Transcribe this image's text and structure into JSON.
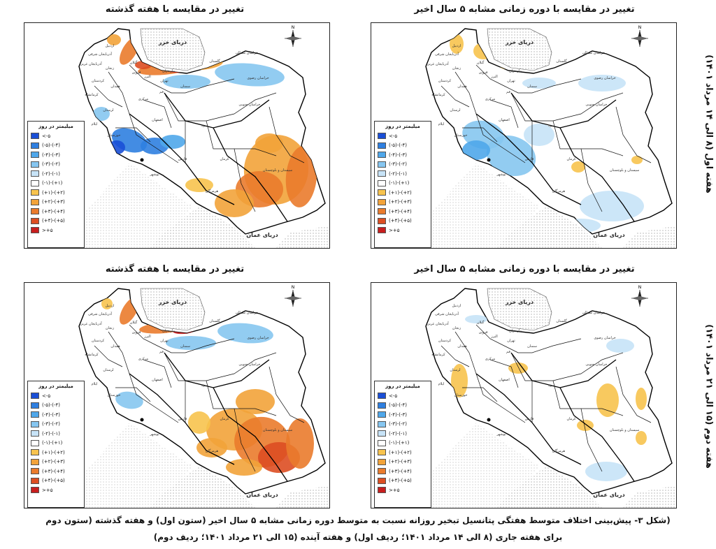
{
  "panels": [
    {
      "title": "تغییر در مقایسه با هفته گذشته",
      "variant": "tl"
    },
    {
      "title": "تغییر در مقایسه با دوره زمانی مشابه ۵ سال اخیر",
      "variant": "tr"
    },
    {
      "title": "تغییر در مقایسه با هفته گذشته",
      "variant": "bl"
    },
    {
      "title": "تغییر در مقایسه با دوره زمانی مشابه ۵ سال اخیر",
      "variant": "br"
    }
  ],
  "legend": {
    "title": "میلیمتر در روز",
    "items": [
      {
        "label": "<-۵",
        "color": "#1a4fd6"
      },
      {
        "label": "(-۵)-(-۴)",
        "color": "#2f7fe0"
      },
      {
        "label": "(-۴)-(-۳)",
        "color": "#4fa7ea"
      },
      {
        "label": "(-۳)-(-۲)",
        "color": "#86c6f0"
      },
      {
        "label": "(-۲)-(-۱)",
        "color": "#c7e3f7"
      },
      {
        "label": "(-۱)-(+۱)",
        "color": "#ffffff"
      },
      {
        "label": "(+۱)-(+۲)",
        "color": "#f7c34e"
      },
      {
        "label": "(+۲)-(+۳)",
        "color": "#f2a33a"
      },
      {
        "label": "(+۳)-(+۴)",
        "color": "#ea7b2c"
      },
      {
        "label": "(+۴)-(+۵)",
        "color": "#dd4e22"
      },
      {
        "label": ">+۵",
        "color": "#c81e1e"
      }
    ]
  },
  "map_labels": {
    "caspian": "دریای خزر",
    "oman": "دریای عمان",
    "north": "N"
  },
  "provinces": [
    "اردبیل",
    "آذربایجان شرقی",
    "آذربایجان غربی",
    "زنجان",
    "گیلان",
    "مازندران",
    "گلستان",
    "خراسان شمالی",
    "خراسان رضوی",
    "خراسان جنوبی",
    "سمنان",
    "تهران",
    "البرز",
    "قزوین",
    "قم",
    "مرکزی",
    "همدان",
    "کردستان",
    "کرمانشاه",
    "لرستان",
    "ایلام",
    "خوزستان",
    "اصفهان",
    "یزد",
    "کرمان",
    "سیستان و بلوچستان",
    "فارس",
    "بوشهر",
    "هرمزگان"
  ],
  "side_labels": {
    "week1": "هفته اول (۸ الی ۱۴ مرداد ۱۴۰۱)",
    "week2": "هفته دوم (۱۵ الی ۲۱ مرداد ۱۴۰۱)"
  },
  "caption": {
    "line1": "(شکل ۳- پیش‌بینی اختلاف متوسط هفتگی پتانسیل تبخیر روزانه نسبت به متوسط دوره زمانی مشابه ۵ سال اخیر (ستون اول) و هفته گذشته (ستون دوم",
    "line2": "برای هفته جاری (۸ الی ۱۴ مرداد ۱۴۰۱؛ ردیف اول) و هفته آینده (۱۵ الی ۲۱ مرداد ۱۴۰۱؛ ردیف دوم)"
  }
}
